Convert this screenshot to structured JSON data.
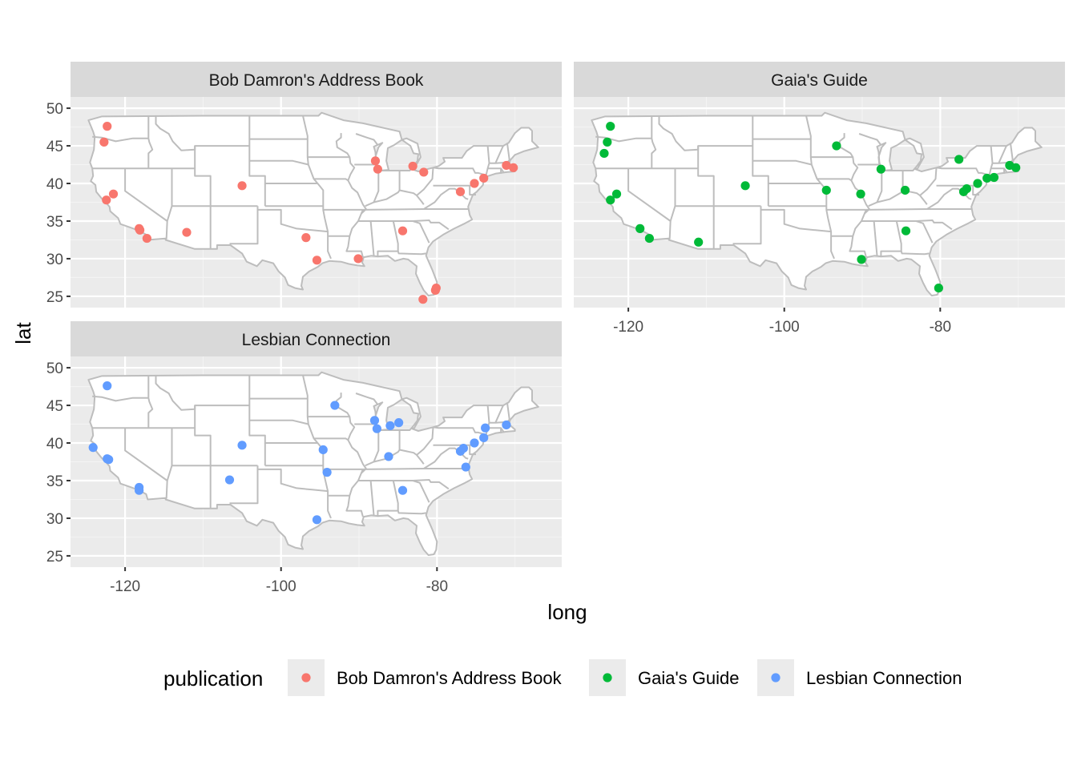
{
  "chart_data": {
    "type": "scatter",
    "subtype": "faceted map of US states with point locations",
    "xlabel": "long",
    "ylabel": "lat",
    "xlim": [
      -127.0,
      -64.0
    ],
    "ylim": [
      23.5,
      51.5
    ],
    "x_ticks": [
      -120,
      -100,
      -80
    ],
    "x_tick_labels": [
      "-120",
      "-100",
      "-80"
    ],
    "y_ticks": [
      25,
      30,
      35,
      40,
      45,
      50
    ],
    "y_tick_labels": [
      "25",
      "30",
      "35",
      "40",
      "45",
      "50"
    ],
    "grid": true,
    "legend": {
      "title": "publication",
      "position": "bottom",
      "entries": [
        "Bob Damron's Address Book",
        "Gaia's Guide",
        "Lesbian Connection"
      ]
    },
    "colors": {
      "Bob Damron's Address Book": "#F8766D",
      "Gaia's Guide": "#00BA38",
      "Lesbian Connection": "#619CFF"
    },
    "facets": [
      {
        "name": "Bob Damron's Address Book",
        "points": [
          {
            "x": -122.3,
            "y": 47.6
          },
          {
            "x": -122.7,
            "y": 45.5
          },
          {
            "x": -122.4,
            "y": 37.8
          },
          {
            "x": -121.5,
            "y": 38.6
          },
          {
            "x": -118.2,
            "y": 34.0
          },
          {
            "x": -118.1,
            "y": 33.8
          },
          {
            "x": -117.2,
            "y": 32.7
          },
          {
            "x": -112.1,
            "y": 33.5
          },
          {
            "x": -105.0,
            "y": 39.7
          },
          {
            "x": -96.8,
            "y": 32.8
          },
          {
            "x": -95.4,
            "y": 29.8
          },
          {
            "x": -90.1,
            "y": 30.0
          },
          {
            "x": -87.9,
            "y": 43.0
          },
          {
            "x": -87.6,
            "y": 41.9
          },
          {
            "x": -84.4,
            "y": 33.7
          },
          {
            "x": -83.1,
            "y": 42.3
          },
          {
            "x": -81.7,
            "y": 41.5
          },
          {
            "x": -80.2,
            "y": 25.8
          },
          {
            "x": -80.1,
            "y": 26.1
          },
          {
            "x": -81.8,
            "y": 24.6
          },
          {
            "x": -77.0,
            "y": 38.9
          },
          {
            "x": -75.2,
            "y": 40.0
          },
          {
            "x": -74.0,
            "y": 40.7
          },
          {
            "x": -71.1,
            "y": 42.4
          },
          {
            "x": -70.2,
            "y": 42.1
          }
        ]
      },
      {
        "name": "Gaia's Guide",
        "points": [
          {
            "x": -122.3,
            "y": 47.6
          },
          {
            "x": -122.7,
            "y": 45.5
          },
          {
            "x": -123.1,
            "y": 44.0
          },
          {
            "x": -122.3,
            "y": 37.8
          },
          {
            "x": -121.5,
            "y": 38.6
          },
          {
            "x": -118.5,
            "y": 34.0
          },
          {
            "x": -117.3,
            "y": 32.7
          },
          {
            "x": -111.0,
            "y": 32.2
          },
          {
            "x": -105.0,
            "y": 39.7
          },
          {
            "x": -93.3,
            "y": 45.0
          },
          {
            "x": -94.6,
            "y": 39.1
          },
          {
            "x": -90.2,
            "y": 38.6
          },
          {
            "x": -90.1,
            "y": 29.9
          },
          {
            "x": -87.6,
            "y": 41.9
          },
          {
            "x": -84.5,
            "y": 39.1
          },
          {
            "x": -84.4,
            "y": 33.7
          },
          {
            "x": -80.2,
            "y": 26.1
          },
          {
            "x": -77.6,
            "y": 43.2
          },
          {
            "x": -76.6,
            "y": 39.3
          },
          {
            "x": -77.0,
            "y": 38.9
          },
          {
            "x": -75.2,
            "y": 40.0
          },
          {
            "x": -74.0,
            "y": 40.7
          },
          {
            "x": -73.1,
            "y": 40.8
          },
          {
            "x": -71.1,
            "y": 42.4
          },
          {
            "x": -70.3,
            "y": 42.1
          }
        ]
      },
      {
        "name": "Lesbian Connection",
        "points": [
          {
            "x": -122.3,
            "y": 47.6
          },
          {
            "x": -124.1,
            "y": 39.4
          },
          {
            "x": -122.3,
            "y": 37.9
          },
          {
            "x": -122.1,
            "y": 37.8
          },
          {
            "x": -118.2,
            "y": 34.1
          },
          {
            "x": -118.2,
            "y": 33.7
          },
          {
            "x": -105.0,
            "y": 39.7
          },
          {
            "x": -106.6,
            "y": 35.1
          },
          {
            "x": -93.1,
            "y": 45.0
          },
          {
            "x": -94.6,
            "y": 39.1
          },
          {
            "x": -94.1,
            "y": 36.1
          },
          {
            "x": -95.4,
            "y": 29.8
          },
          {
            "x": -88.0,
            "y": 43.0
          },
          {
            "x": -87.7,
            "y": 41.9
          },
          {
            "x": -86.0,
            "y": 42.3
          },
          {
            "x": -84.9,
            "y": 42.7
          },
          {
            "x": -86.2,
            "y": 38.2
          },
          {
            "x": -84.4,
            "y": 33.7
          },
          {
            "x": -77.0,
            "y": 38.9
          },
          {
            "x": -76.6,
            "y": 39.3
          },
          {
            "x": -76.3,
            "y": 36.8
          },
          {
            "x": -75.2,
            "y": 40.0
          },
          {
            "x": -74.0,
            "y": 40.7
          },
          {
            "x": -73.8,
            "y": 42.0
          },
          {
            "x": -71.1,
            "y": 42.4
          }
        ]
      }
    ]
  }
}
